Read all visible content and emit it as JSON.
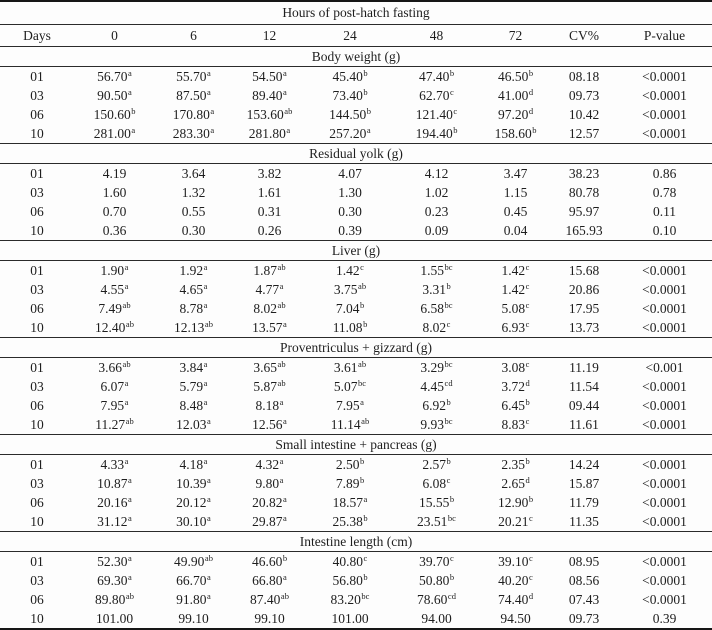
{
  "colors": {
    "text": "#1e1e1e",
    "line_thin": "#2b2b2b",
    "line_thick": "#161616",
    "background": "#fdfdfd"
  },
  "table": {
    "title": "Hours of post-hatch fasting",
    "columns": [
      "Days",
      "0",
      "6",
      "12",
      "24",
      "48",
      "72",
      "CV%",
      "P-value"
    ],
    "sections": [
      {
        "header": "Body weight (g)",
        "rows": [
          [
            "01",
            "56.70^a",
            "55.70^a",
            "54.50^a",
            "45.40^b",
            "47.40^b",
            "46.50^b",
            "08.18",
            "<0.0001"
          ],
          [
            "03",
            "90.50^a",
            "87.50^a",
            "89.40^a",
            "73.40^b",
            "62.70^c",
            "41.00^d",
            "09.73",
            "<0.0001"
          ],
          [
            "06",
            "150.60^b",
            "170.80^a",
            "153.60^ab",
            "144.50^b",
            "121.40^c",
            "97.20^d",
            "10.42",
            "<0.0001"
          ],
          [
            "10",
            "281.00^a",
            "283.30^a",
            "281.80^a",
            "257.20^a",
            "194.40^b",
            "158.60^b",
            "12.57",
            "<0.0001"
          ]
        ]
      },
      {
        "header": "Residual yolk (g)",
        "rows": [
          [
            "01",
            "4.19",
            "3.64",
            "3.82",
            "4.07",
            "4.12",
            "3.47",
            "38.23",
            "0.86"
          ],
          [
            "03",
            "1.60",
            "1.32",
            "1.61",
            "1.30",
            "1.02",
            "1.15",
            "80.78",
            "0.78"
          ],
          [
            "06",
            "0.70",
            "0.55",
            "0.31",
            "0.30",
            "0.23",
            "0.45",
            "95.97",
            "0.11"
          ],
          [
            "10",
            "0.36",
            "0.30",
            "0.26",
            "0.39",
            "0.09",
            "0.04",
            "165.93",
            "0.10"
          ]
        ]
      },
      {
        "header": "Liver (g)",
        "rows": [
          [
            "01",
            "1.90^a",
            "1.92^a",
            "1.87^ab",
            "1.42^c",
            "1.55^bc",
            "1.42^c",
            "15.68",
            "<0.0001"
          ],
          [
            "03",
            "4.55^a",
            "4.65^a",
            "4.77^a",
            "3.75^ab",
            "3.31^b",
            "1.42^c",
            "20.86",
            "<0.0001"
          ],
          [
            "06",
            "7.49^ab",
            "8.78^a",
            "8.02^ab",
            "7.04^b",
            "6.58^bc",
            "5.08^c",
            "17.95",
            "<0.0001"
          ],
          [
            "10",
            "12.40^ab",
            "12.13^ab",
            "13.57^a",
            "11.08^b",
            "8.02^c",
            "6.93^c",
            "13.73",
            "<0.0001"
          ]
        ]
      },
      {
        "header": "Proventriculus + gizzard (g)",
        "rows": [
          [
            "01",
            "3.66^ab",
            "3.84^a",
            "3.65^ab",
            "3.61^ab",
            "3.29^bc",
            "3.08^c",
            "11.19",
            "<0.001"
          ],
          [
            "03",
            "6.07^a",
            "5.79^a",
            "5.87^ab",
            "5.07^bc",
            "4.45^cd",
            "3.72^d",
            "11.54",
            "<0.0001"
          ],
          [
            "06",
            "7.95^a",
            "8.48^a",
            "8.18^a",
            "7.95^a",
            "6.92^b",
            "6.45^b",
            "09.44",
            "<0.0001"
          ],
          [
            "10",
            "11.27^ab",
            "12.03^a",
            "12.56^a",
            "11.14^ab",
            "9.93^bc",
            "8.83^c",
            "11.61",
            "<0.0001"
          ]
        ]
      },
      {
        "header": "Small intestine + pancreas (g)",
        "rows": [
          [
            "01",
            "4.33^a",
            "4.18^a",
            "4.32^a",
            "2.50^b",
            "2.57^b",
            "2.35^b",
            "14.24",
            "<0.0001"
          ],
          [
            "03",
            "10.87^a",
            "10.39^a",
            "9.80^a",
            "7.89^b",
            "6.08^c",
            "2.65^d",
            "15.87",
            "<0.0001"
          ],
          [
            "06",
            "20.16^a",
            "20.12^a",
            "20.82^a",
            "18.57^a",
            "15.55^b",
            "12.90^b",
            "11.79",
            "<0.0001"
          ],
          [
            "10",
            "31.12^a",
            "30.10^a",
            "29.87^a",
            "25.38^b",
            "23.51^bc",
            "20.21^c",
            "11.35",
            "<0.0001"
          ]
        ]
      },
      {
        "header": "Intestine length (cm)",
        "rows": [
          [
            "01",
            "52.30^a",
            "49.90^ab",
            "46.60^b",
            "40.80^c",
            "39.70^c",
            "39.10^c",
            "08.95",
            "<0.0001"
          ],
          [
            "03",
            "69.30^a",
            "66.70^a",
            "66.80^a",
            "56.80^b",
            "50.80^b",
            "40.20^c",
            "08.56",
            "<0.0001"
          ],
          [
            "06",
            "89.80^ab",
            "91.80^a",
            "87.40^ab",
            "83.20^bc",
            "78.60^cd",
            "74.40^d",
            "07.43",
            "<0.0001"
          ],
          [
            "10",
            "101.00",
            "99.10",
            "99.10",
            "101.00",
            "94.00",
            "94.50",
            "09.73",
            "0.39"
          ]
        ]
      }
    ]
  }
}
